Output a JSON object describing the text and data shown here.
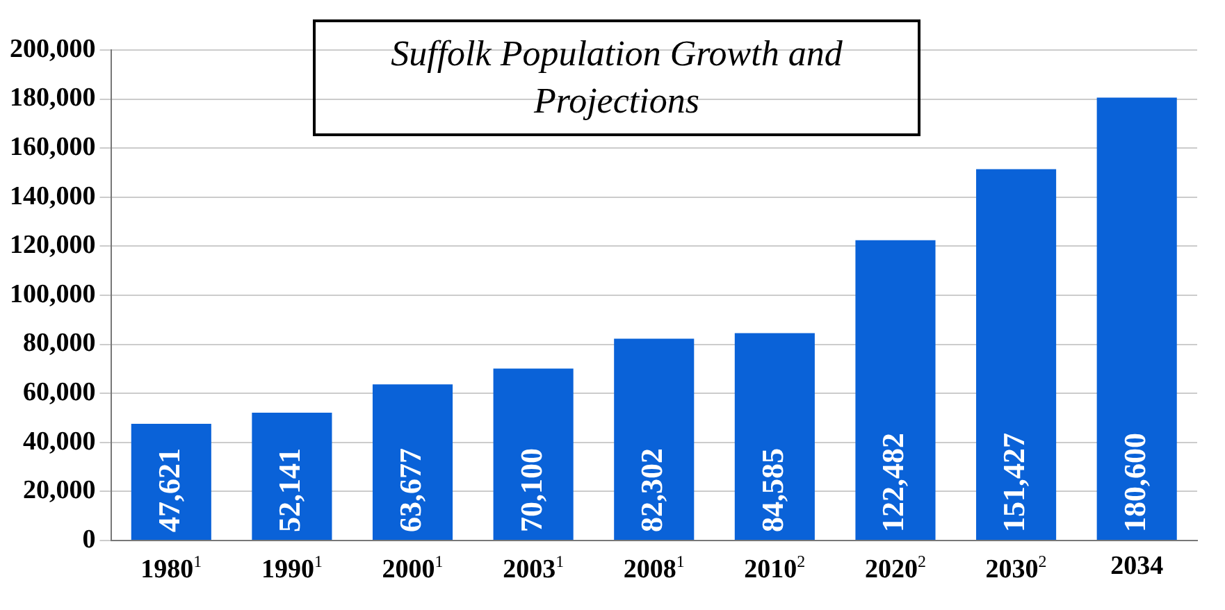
{
  "chart_data": {
    "type": "bar",
    "title": "Suffolk Population Growth and Projections",
    "categories": [
      "1980$^{1}$",
      "1990$^{1}$",
      "2000$^{1}$",
      "2003$^{1}$",
      "2008$^{1}$",
      "2010$^{2}$",
      "2020$^{2}$",
      "2030$^{2}$",
      "2034"
    ],
    "values": [
      47621,
      52141,
      63677,
      70100,
      82302,
      84585,
      122482,
      151427,
      180600
    ],
    "value_labels": [
      "47,621",
      "52,141",
      "63,677",
      "70,100",
      "82,302",
      "84,585",
      "122,482",
      "151,427",
      "180,600"
    ],
    "color": "#0a62d8",
    "ylim": [
      0,
      200000
    ],
    "yticks": [
      {
        "value": 0,
        "label": "0"
      },
      {
        "value": 20000,
        "label": "20,000"
      },
      {
        "value": 40000,
        "label": "40,000"
      },
      {
        "value": 60000,
        "label": "60,000"
      },
      {
        "value": 80000,
        "label": "80,000"
      },
      {
        "value": 100000,
        "label": "100,000"
      },
      {
        "value": 120000,
        "label": "120,000"
      },
      {
        "value": 140000,
        "label": "140,000"
      },
      {
        "value": 160000,
        "label": "160,000"
      },
      {
        "value": 180000,
        "label": "180,000"
      },
      {
        "value": 200000,
        "label": "200,000"
      }
    ],
    "grid": "y"
  }
}
